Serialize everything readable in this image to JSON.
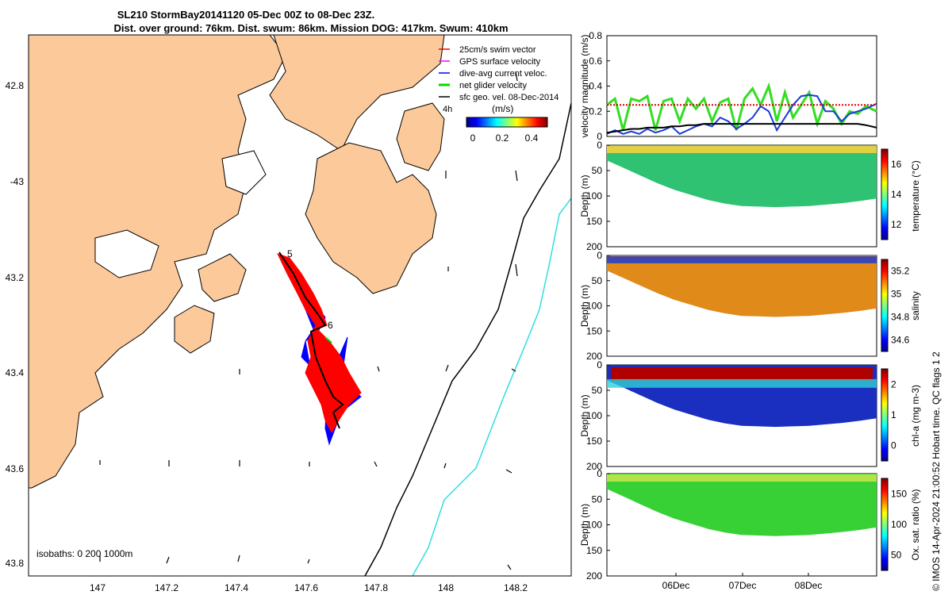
{
  "title": {
    "line1": "SL210 StormBay20141120 05-Dec 00Z to 08-Dec 23Z.",
    "line2": "Dist. over ground: 76km. Dist. swum: 86km. Mission DOG: 417km. Swum: 410km"
  },
  "map": {
    "legend": [
      {
        "label": "25cm/s swim vector",
        "color": "#ff0000"
      },
      {
        "label": "GPS surface velocity",
        "color": "#ff00ff"
      },
      {
        "label": "dive-avg current veloc.",
        "color": "#0000ff"
      },
      {
        "label": "net glider velocity",
        "color": "#00dd00"
      },
      {
        "label": "sfc geo. vel. 08-Dec-2014",
        "color": "#000000"
      }
    ],
    "time_label": "4h",
    "colorbar": {
      "label": "(m/s)",
      "ticks": [
        "0",
        "0.2",
        "0.4"
      ]
    },
    "lon_ticks": [
      "147",
      "147.2",
      "147.4",
      "147.6",
      "147.8",
      "148",
      "148.2"
    ],
    "lat_ticks": [
      "42.8",
      "-43",
      "43.2",
      "43.4",
      "43.6",
      "43.8"
    ],
    "track_day_labels": [
      "5",
      "6"
    ],
    "isobath_label": "isobaths: 0   200  1000m",
    "colors": {
      "land": "#fbc99a",
      "track": "#ff0000",
      "current": "#0000ff",
      "iso200": "#000000",
      "iso1000": "#33dddd"
    }
  },
  "chart_data": [
    {
      "type": "line",
      "title": "",
      "ylabel": "velocity magnitude (m/s)",
      "ylim": [
        0,
        0.8
      ],
      "yticks": [
        "0",
        "0.2",
        "0.4",
        "0.6",
        "0.8"
      ],
      "x": [
        0,
        0.03,
        0.06,
        0.09,
        0.12,
        0.15,
        0.18,
        0.21,
        0.24,
        0.27,
        0.3,
        0.33,
        0.36,
        0.39,
        0.42,
        0.45,
        0.48,
        0.51,
        0.54,
        0.57,
        0.6,
        0.63,
        0.66,
        0.69,
        0.72,
        0.75,
        0.78,
        0.81,
        0.84,
        0.87,
        0.9,
        0.93,
        0.96,
        1.0
      ],
      "series": [
        {
          "name": "net glider velocity",
          "color": "#33dd22",
          "values": [
            0.25,
            0.3,
            0.05,
            0.3,
            0.28,
            0.32,
            0.05,
            0.28,
            0.3,
            0.12,
            0.3,
            0.22,
            0.3,
            0.12,
            0.27,
            0.3,
            0.05,
            0.3,
            0.38,
            0.25,
            0.4,
            0.12,
            0.35,
            0.15,
            0.25,
            0.35,
            0.1,
            0.28,
            0.22,
            0.1,
            0.2,
            0.18,
            0.24,
            0.2
          ]
        },
        {
          "name": "dive-avg current",
          "color": "#1a3bd9",
          "values": [
            0.02,
            0.05,
            0.02,
            0.04,
            0.02,
            0.06,
            0.03,
            0.05,
            0.08,
            0.02,
            0.05,
            0.08,
            0.1,
            0.08,
            0.15,
            0.12,
            0.06,
            0.1,
            0.15,
            0.24,
            0.2,
            0.05,
            0.15,
            0.25,
            0.32,
            0.33,
            0.32,
            0.2,
            0.2,
            0.12,
            0.18,
            0.2,
            0.22,
            0.26
          ]
        },
        {
          "name": "sfc geo. vel.",
          "color": "#000000",
          "values": [
            0.03,
            0.04,
            0.05,
            0.06,
            0.06,
            0.07,
            0.07,
            0.07,
            0.08,
            0.08,
            0.09,
            0.09,
            0.1,
            0.1,
            0.1,
            0.1,
            0.1,
            0.1,
            0.1,
            0.1,
            0.1,
            0.1,
            0.1,
            0.1,
            0.1,
            0.1,
            0.1,
            0.1,
            0.1,
            0.1,
            0.1,
            0.1,
            0.09,
            0.07
          ]
        },
        {
          "name": "swim speed",
          "color": "#dd0000",
          "values": [
            0.25,
            0.25,
            0.25,
            0.25,
            0.25,
            0.25,
            0.25,
            0.25,
            0.25,
            0.25,
            0.25,
            0.25,
            0.25,
            0.25,
            0.25,
            0.25,
            0.25,
            0.25,
            0.25,
            0.25,
            0.25,
            0.25,
            0.25,
            0.25,
            0.25,
            0.25,
            0.25,
            0.25,
            0.25,
            0.25,
            0.25,
            0.25,
            0.25,
            0.25
          ]
        }
      ]
    },
    {
      "type": "heatmap",
      "variable": "temperature",
      "ylabel": "Depth (m)",
      "cbar_label": "temperature (°C)",
      "cbar_ticks": [
        "12",
        "14",
        "16"
      ],
      "yticks": [
        "0",
        "50",
        "100",
        "150",
        "200"
      ],
      "ylim": [
        0,
        200
      ],
      "bottom_depth": [
        30,
        45,
        60,
        75,
        88,
        98,
        108,
        115,
        120,
        121,
        122,
        121,
        120,
        117,
        114,
        110,
        105
      ]
    },
    {
      "type": "heatmap",
      "variable": "salinity",
      "ylabel": "Depth (m)",
      "cbar_label": "salinity",
      "cbar_ticks": [
        "34.6",
        "34.8",
        "35",
        "35.2"
      ],
      "yticks": [
        "0",
        "50",
        "100",
        "150",
        "200"
      ],
      "ylim": [
        0,
        200
      ],
      "bottom_depth": [
        30,
        45,
        60,
        75,
        88,
        98,
        108,
        115,
        120,
        121,
        122,
        121,
        120,
        117,
        114,
        110,
        105
      ]
    },
    {
      "type": "heatmap",
      "variable": "chl-a",
      "ylabel": "Depth (m)",
      "cbar_label": "chl-a (mg m-3)",
      "cbar_ticks": [
        "0",
        "1",
        "2"
      ],
      "yticks": [
        "0",
        "50",
        "100",
        "150",
        "200"
      ],
      "ylim": [
        0,
        200
      ],
      "bottom_depth": [
        30,
        45,
        60,
        75,
        88,
        98,
        108,
        115,
        120,
        121,
        122,
        121,
        120,
        117,
        114,
        110,
        105
      ]
    },
    {
      "type": "heatmap",
      "variable": "oxygen",
      "ylabel": "Depth (m)",
      "cbar_label": "Ox. sat. ratio (%)",
      "cbar_ticks": [
        "50",
        "100",
        "150"
      ],
      "yticks": [
        "0",
        "50",
        "100",
        "150",
        "200"
      ],
      "ylim": [
        0,
        200
      ],
      "bottom_depth": [
        30,
        45,
        60,
        75,
        88,
        98,
        108,
        115,
        120,
        121,
        122,
        121,
        120,
        117,
        114,
        110,
        105
      ],
      "xticks": [
        "06Dec",
        "07Dec",
        "08Dec"
      ]
    }
  ],
  "footer": "© IMOS 14-Apr-2024 21:00:52 Hobart time. QC flags 1  2"
}
